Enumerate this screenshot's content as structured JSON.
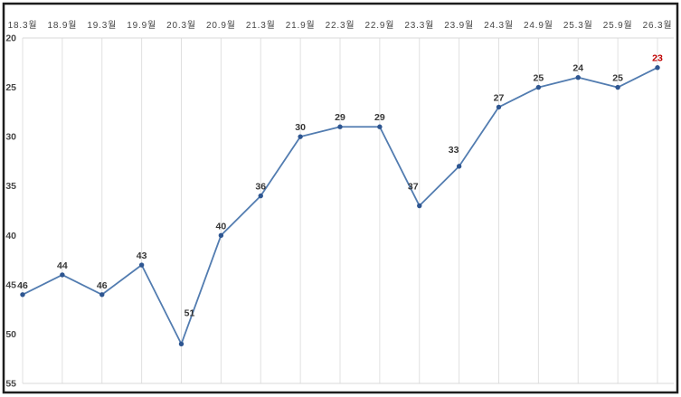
{
  "chart_data": {
    "type": "line",
    "title": "",
    "categories": [
      "18.3월",
      "18.9월",
      "19.3월",
      "19.9월",
      "20.3월",
      "20.9월",
      "21.3월",
      "21.9월",
      "22.3월",
      "22.9월",
      "23.3월",
      "23.9월",
      "24.3월",
      "24.9월",
      "25.3월",
      "25.9월",
      "26.3월"
    ],
    "values": [
      46,
      44,
      46,
      43,
      51,
      40,
      36,
      30,
      29,
      29,
      37,
      33,
      27,
      25,
      24,
      25,
      23
    ],
    "x_axis_position": "top",
    "y_axis": {
      "ticks": [
        20,
        25,
        30,
        35,
        40,
        45,
        50,
        55
      ],
      "min": 20,
      "max": 55,
      "inverted": true
    },
    "grid": {
      "vertical": true,
      "horizontal": false
    },
    "legend": "none",
    "data_labels_visible": true,
    "highlight": {
      "index": 16,
      "value": 23,
      "label_color": "#c00000"
    },
    "colors": {
      "line": "#527cb0",
      "marker": "#2e5691",
      "data_label": "#363636",
      "axis_label": "#454545",
      "gridline": "#e0e0e0",
      "plot_border": "#d8d8d8",
      "chart_border": "#1d1d1d",
      "background": "#ffffff"
    }
  }
}
